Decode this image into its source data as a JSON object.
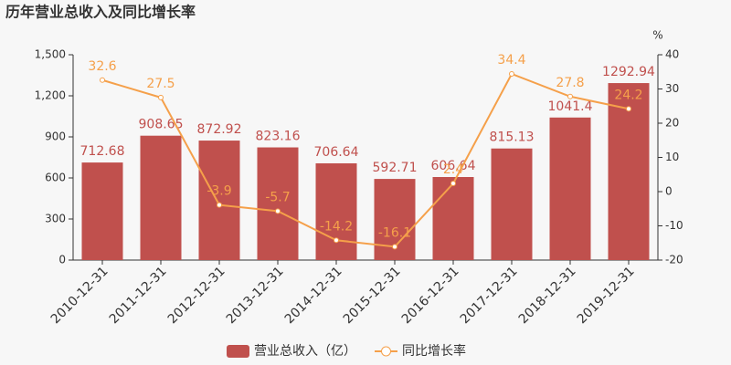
{
  "chart_data": {
    "type": "bar",
    "title": "历年营业总收入及同比增长率",
    "categories": [
      "2010-12-31",
      "2011-12-31",
      "2012-12-31",
      "2013-12-31",
      "2014-12-31",
      "2015-12-31",
      "2016-12-31",
      "2017-12-31",
      "2018-12-31",
      "2019-12-31"
    ],
    "series": [
      {
        "name": "营业总收入（亿）",
        "type": "bar",
        "color": "#c0504d",
        "values": [
          712.68,
          908.65,
          872.92,
          823.16,
          706.64,
          592.71,
          606.64,
          815.13,
          1041.4,
          1292.94
        ]
      },
      {
        "name": "同比增长率",
        "type": "line",
        "axis": "y2",
        "color": "#f5a04a",
        "values": [
          32.6,
          27.5,
          -3.9,
          -5.7,
          -14.2,
          -16.1,
          2.4,
          34.4,
          27.8,
          24.2
        ]
      }
    ],
    "ylim": [
      0,
      1500
    ],
    "yticks": [
      0,
      300,
      600,
      900,
      {
        "value": 1200,
        "label": "1,200"
      },
      {
        "value": 1500,
        "label": "1,500"
      }
    ],
    "y2lim": [
      -20,
      40
    ],
    "y2ticks": [
      -20,
      -10,
      0,
      10,
      20,
      30,
      40
    ],
    "y2_unit": "%",
    "legend": "bottom"
  }
}
